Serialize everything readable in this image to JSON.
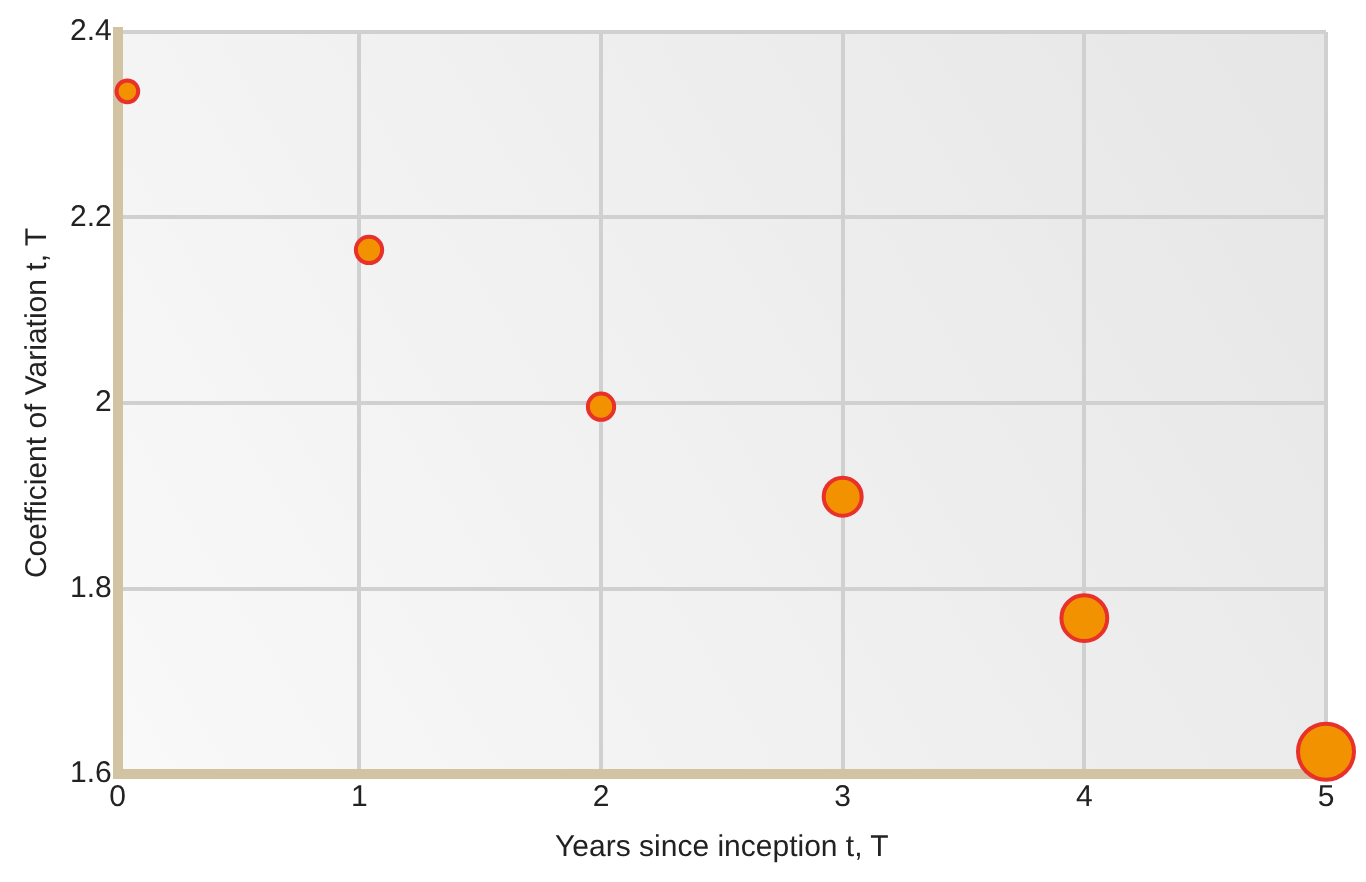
{
  "chart_data": {
    "type": "bubble",
    "xlabel": "Years since inception t, T",
    "ylabel": "Coefficient of Variation t, T",
    "x": [
      0.04,
      1.04,
      2,
      3,
      4,
      5
    ],
    "series": [
      {
        "color": "#f39200",
        "values": [
          2.336,
          2.165,
          1.996,
          1.899,
          1.768,
          1.624
        ],
        "sizes": [
          0.15,
          0.22,
          0.22,
          0.46,
          0.67,
          1
        ]
      }
    ],
    "xlim": [
      0,
      5
    ],
    "xticks": [
      0,
      1,
      2,
      3,
      4,
      5
    ],
    "ylim": [
      1.6,
      2.4
    ],
    "yticks": [
      1.6,
      1.8,
      2,
      2.2,
      2.4
    ],
    "grid": true,
    "legend": false,
    "marker": "circle"
  }
}
